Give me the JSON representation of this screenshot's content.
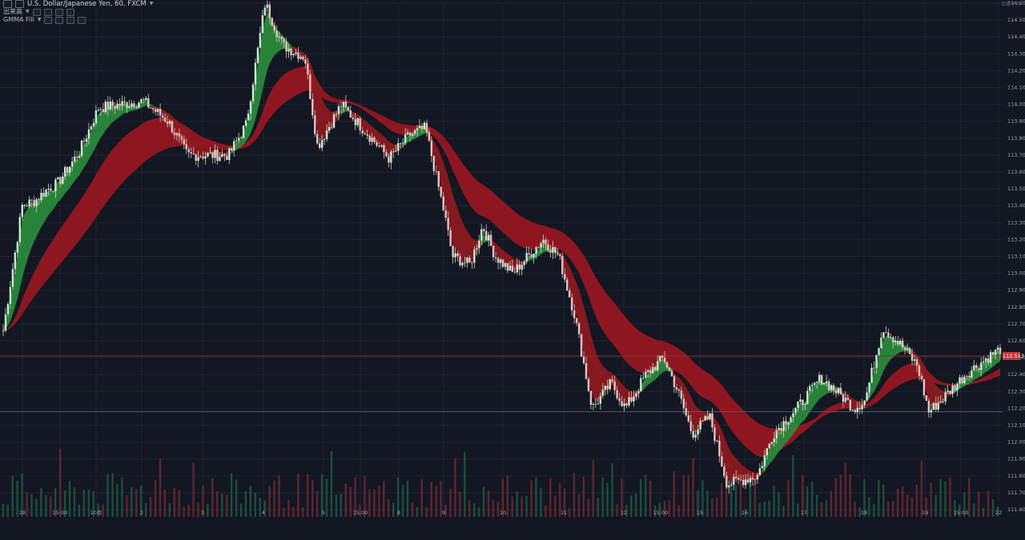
{
  "header": {
    "symbol_title": "U.S. Dollar/Japanese Yen, 60, FXCM",
    "volume_label": "出来高",
    "indicator_label": "GMMA Fill",
    "top_right_note": "日経平均"
  },
  "last_price_label": "112.513",
  "colors": {
    "background": "#131722",
    "grid": "#1f2430",
    "up_candle": "#2e8f4f",
    "down_candle": "#c4454b",
    "long_ribbon": "#9c1620",
    "short_ribbon_up": "#2b8c3c",
    "short_ribbon_down": "#8e1a20",
    "price_line": "#8a3036"
  },
  "chart_data": {
    "type": "candlestick",
    "title": "U.S. Dollar/Japanese Yen, 60, FXCM",
    "y_range": [
      111.55,
      114.62
    ],
    "y_ticks": [
      "114.600",
      "114.500",
      "114.400",
      "114.300",
      "114.200",
      "114.100",
      "114.000",
      "113.900",
      "113.800",
      "113.700",
      "113.600",
      "113.500",
      "113.400",
      "113.300",
      "113.200",
      "113.100",
      "113.000",
      "112.900",
      "112.800",
      "112.700",
      "112.600",
      "112.500",
      "112.400",
      "112.300",
      "112.200",
      "112.100",
      "112.000",
      "111.900",
      "111.800",
      "111.700",
      "111.600"
    ],
    "x_ticks": [
      "28",
      "15:00",
      "10月",
      "2",
      "3",
      "4",
      "5",
      "15:00",
      "8",
      "9",
      "10",
      "11",
      "12",
      "15:00",
      "15",
      "16",
      "17",
      "18",
      "19",
      "15:00",
      "22"
    ],
    "horizontal_lines": [
      112.51,
      112.18
    ],
    "close_path": [
      {
        "x": 0.0,
        "y": 112.66
      },
      {
        "x": 1.2,
        "y": 113.4
      },
      {
        "x": 2.0,
        "y": 113.43
      },
      {
        "x": 2.8,
        "y": 113.5
      },
      {
        "x": 3.4,
        "y": 113.53
      },
      {
        "x": 4.8,
        "y": 113.72
      },
      {
        "x": 6.0,
        "y": 113.98
      },
      {
        "x": 8.8,
        "y": 114.02
      },
      {
        "x": 10.4,
        "y": 113.9
      },
      {
        "x": 11.6,
        "y": 113.7
      },
      {
        "x": 13.2,
        "y": 113.7
      },
      {
        "x": 14.2,
        "y": 113.7
      },
      {
        "x": 15.3,
        "y": 113.88
      },
      {
        "x": 16.5,
        "y": 114.6
      },
      {
        "x": 17.6,
        "y": 114.35
      },
      {
        "x": 19.0,
        "y": 114.28
      },
      {
        "x": 19.8,
        "y": 113.75
      },
      {
        "x": 21.3,
        "y": 114.0
      },
      {
        "x": 23.2,
        "y": 113.8
      },
      {
        "x": 24.3,
        "y": 113.68
      },
      {
        "x": 25.6,
        "y": 113.82
      },
      {
        "x": 26.6,
        "y": 113.86
      },
      {
        "x": 27.8,
        "y": 113.35
      },
      {
        "x": 28.3,
        "y": 113.1
      },
      {
        "x": 29.4,
        "y": 113.05
      },
      {
        "x": 30.2,
        "y": 113.28
      },
      {
        "x": 31.0,
        "y": 113.1
      },
      {
        "x": 32.1,
        "y": 113.0
      },
      {
        "x": 34.0,
        "y": 113.2
      },
      {
        "x": 35.0,
        "y": 113.1
      },
      {
        "x": 36.0,
        "y": 112.75
      },
      {
        "x": 37.1,
        "y": 112.2
      },
      {
        "x": 38.3,
        "y": 112.35
      },
      {
        "x": 39.2,
        "y": 112.2
      },
      {
        "x": 40.5,
        "y": 112.4
      },
      {
        "x": 41.6,
        "y": 112.5
      },
      {
        "x": 42.5,
        "y": 112.3
      },
      {
        "x": 43.4,
        "y": 112.05
      },
      {
        "x": 44.5,
        "y": 112.15
      },
      {
        "x": 45.6,
        "y": 111.75
      },
      {
        "x": 47.5,
        "y": 111.8
      },
      {
        "x": 48.5,
        "y": 112.05
      },
      {
        "x": 50.0,
        "y": 112.2
      },
      {
        "x": 51.5,
        "y": 112.38
      },
      {
        "x": 52.5,
        "y": 112.3
      },
      {
        "x": 53.6,
        "y": 112.2
      },
      {
        "x": 54.3,
        "y": 112.25
      },
      {
        "x": 55.4,
        "y": 112.68
      },
      {
        "x": 56.6,
        "y": 112.57
      },
      {
        "x": 57.6,
        "y": 112.45
      },
      {
        "x": 58.3,
        "y": 112.18
      },
      {
        "x": 59.1,
        "y": 112.25
      },
      {
        "x": 60.6,
        "y": 112.4
      },
      {
        "x": 62.0,
        "y": 112.5
      },
      {
        "x": 62.8,
        "y": 112.55
      }
    ],
    "series": [
      {
        "name": "Price (candles)"
      },
      {
        "name": "Short-term GMMA"
      },
      {
        "name": "Long-term GMMA"
      },
      {
        "name": "Volume"
      }
    ]
  }
}
